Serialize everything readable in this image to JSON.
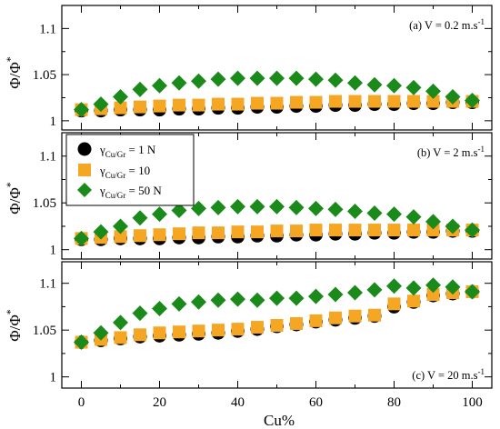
{
  "figure": {
    "x_axis_label": "Cu%",
    "y_axis_label": "Φ/Φ",
    "y_axis_label_sup": "*"
  },
  "legend": {
    "entries": [
      {
        "prefix": "γ",
        "sub": "Cu/Gr",
        "suffix": " = 1 N",
        "color": "#000000",
        "marker": "circle"
      },
      {
        "prefix": "γ",
        "sub": "Cu/Gr",
        "suffix": " = 10",
        "color": "#f5a623",
        "marker": "square"
      },
      {
        "prefix": "γ",
        "sub": "Cu/Gr",
        "suffix": " = 50 N",
        "color": "#1a8a1a",
        "marker": "diamond"
      }
    ]
  },
  "chart_data": [
    {
      "type": "scatter",
      "annotation_main": "(a) V = 0.2 m.s",
      "annotation_sup": "-1",
      "annotation_position": "top-right",
      "xlim": [
        -5,
        105
      ],
      "ylim": [
        0.99,
        1.125
      ],
      "y_ticks": [
        "1",
        "1.05",
        "1.1"
      ],
      "x_ticks": [
        "0",
        "20",
        "40",
        "60",
        "80",
        "100"
      ],
      "x": [
        0,
        5,
        10,
        15,
        20,
        25,
        30,
        35,
        40,
        45,
        50,
        55,
        60,
        65,
        70,
        75,
        80,
        85,
        90,
        95,
        100
      ],
      "series": [
        {
          "color": "#000000",
          "marker": "circle",
          "values": [
            1.011,
            1.011,
            1.012,
            1.012,
            1.012,
            1.013,
            1.013,
            1.014,
            1.014,
            1.015,
            1.015,
            1.016,
            1.016,
            1.017,
            1.017,
            1.018,
            1.018,
            1.019,
            1.019,
            1.02,
            1.02
          ]
        },
        {
          "color": "#f5a623",
          "marker": "square",
          "values": [
            1.012,
            1.013,
            1.014,
            1.015,
            1.016,
            1.017,
            1.017,
            1.018,
            1.018,
            1.019,
            1.019,
            1.02,
            1.02,
            1.021,
            1.021,
            1.021,
            1.021,
            1.021,
            1.021,
            1.021,
            1.021
          ]
        },
        {
          "color": "#1a8a1a",
          "marker": "diamond",
          "values": [
            1.012,
            1.018,
            1.026,
            1.034,
            1.038,
            1.041,
            1.043,
            1.045,
            1.046,
            1.046,
            1.046,
            1.046,
            1.045,
            1.044,
            1.041,
            1.039,
            1.038,
            1.036,
            1.032,
            1.026,
            1.022
          ]
        }
      ]
    },
    {
      "type": "scatter",
      "annotation_main": "(b) V = 2 m.s",
      "annotation_sup": "-1",
      "annotation_position": "top-right",
      "xlim": [
        -5,
        105
      ],
      "ylim": [
        0.99,
        1.125
      ],
      "y_ticks": [
        "1",
        "1.05",
        "1.1"
      ],
      "x_ticks": [
        "0",
        "20",
        "40",
        "60",
        "80",
        "100"
      ],
      "x": [
        0,
        5,
        10,
        15,
        20,
        25,
        30,
        35,
        40,
        45,
        50,
        55,
        60,
        65,
        70,
        75,
        80,
        85,
        90,
        95,
        100
      ],
      "series": [
        {
          "color": "#000000",
          "marker": "circle",
          "values": [
            1.011,
            1.011,
            1.012,
            1.012,
            1.012,
            1.013,
            1.013,
            1.014,
            1.014,
            1.015,
            1.015,
            1.016,
            1.016,
            1.017,
            1.017,
            1.018,
            1.018,
            1.019,
            1.019,
            1.02,
            1.02
          ]
        },
        {
          "color": "#f5a623",
          "marker": "square",
          "values": [
            1.012,
            1.013,
            1.014,
            1.015,
            1.016,
            1.017,
            1.018,
            1.018,
            1.019,
            1.019,
            1.02,
            1.02,
            1.021,
            1.021,
            1.021,
            1.021,
            1.021,
            1.021,
            1.021,
            1.021,
            1.021
          ]
        },
        {
          "color": "#1a8a1a",
          "marker": "diamond",
          "values": [
            1.012,
            1.019,
            1.025,
            1.034,
            1.038,
            1.042,
            1.044,
            1.045,
            1.046,
            1.046,
            1.046,
            1.045,
            1.044,
            1.043,
            1.041,
            1.039,
            1.038,
            1.035,
            1.03,
            1.025,
            1.021
          ]
        }
      ]
    },
    {
      "type": "scatter",
      "annotation_main": "(c) V = 20 m.s",
      "annotation_sup": "-1",
      "annotation_position": "bottom-right",
      "xlim": [
        -5,
        105
      ],
      "ylim": [
        0.988,
        1.123
      ],
      "y_ticks": [
        "1",
        "1.05",
        "1.1"
      ],
      "x_ticks": [
        "0",
        "20",
        "40",
        "60",
        "80",
        "100"
      ],
      "x": [
        0,
        5,
        10,
        15,
        20,
        25,
        30,
        35,
        40,
        45,
        50,
        55,
        60,
        65,
        70,
        75,
        80,
        85,
        90,
        95,
        100
      ],
      "series": [
        {
          "color": "#000000",
          "marker": "circle",
          "values": [
            1.037,
            1.039,
            1.041,
            1.043,
            1.044,
            1.045,
            1.046,
            1.047,
            1.049,
            1.051,
            1.054,
            1.056,
            1.059,
            1.061,
            1.063,
            1.065,
            1.075,
            1.08,
            1.087,
            1.089,
            1.091
          ]
        },
        {
          "color": "#f5a623",
          "marker": "square",
          "values": [
            1.037,
            1.04,
            1.042,
            1.045,
            1.047,
            1.048,
            1.049,
            1.05,
            1.051,
            1.053,
            1.055,
            1.057,
            1.06,
            1.063,
            1.065,
            1.066,
            1.078,
            1.081,
            1.088,
            1.09,
            1.091
          ]
        },
        {
          "color": "#1a8a1a",
          "marker": "diamond",
          "values": [
            1.037,
            1.047,
            1.058,
            1.068,
            1.073,
            1.078,
            1.08,
            1.082,
            1.083,
            1.082,
            1.084,
            1.084,
            1.086,
            1.088,
            1.09,
            1.093,
            1.097,
            1.095,
            1.098,
            1.096,
            1.091
          ]
        }
      ]
    }
  ]
}
